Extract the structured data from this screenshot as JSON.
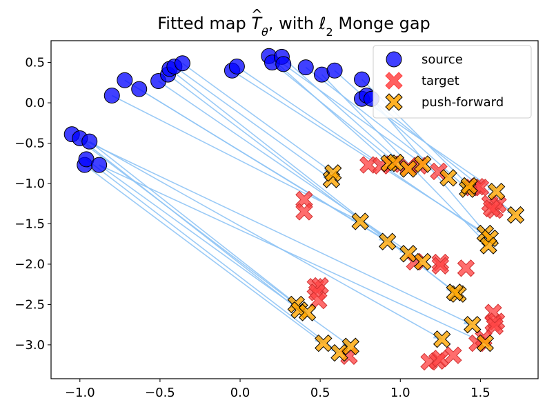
{
  "chart_data": {
    "type": "scatter",
    "title": "Fitted map T̂θ, with ℓ2 Monge gap",
    "title_parts": {
      "prefix": "Fitted map ",
      "symbol": "T",
      "hat": "^",
      "sub": "θ",
      "middle": ", with ",
      "ell": "ℓ",
      "ell_sub": "2",
      "suffix": " Monge gap"
    },
    "xlim": [
      -1.18,
      1.86
    ],
    "ylim": [
      -3.42,
      0.77
    ],
    "xticks": [
      -1.0,
      -0.5,
      0.0,
      0.5,
      1.0,
      1.5
    ],
    "xtick_labels": [
      "−1.0",
      "−0.5",
      "0.0",
      "0.5",
      "1.0",
      "1.5"
    ],
    "yticks": [
      0.5,
      0.0,
      -0.5,
      -1.0,
      -1.5,
      -2.0,
      -2.5,
      -3.0
    ],
    "ytick_labels": [
      "0.5",
      "0.0",
      "−0.5",
      "−1.0",
      "−1.5",
      "−2.0",
      "−2.5",
      "−3.0"
    ],
    "grid": false,
    "legend_position": "top-right",
    "colors": {
      "source": "#0000ff",
      "target": "#ff4444",
      "pushforward": "#ffa500",
      "arrow": "#8fc4f5"
    },
    "series": [
      {
        "name": "source",
        "marker": "circle",
        "points": [
          [
            -0.8,
            0.09
          ],
          [
            -0.72,
            0.28
          ],
          [
            -0.63,
            0.17
          ],
          [
            -0.51,
            0.27
          ],
          [
            -0.45,
            0.35
          ],
          [
            -0.44,
            0.42
          ],
          [
            -0.41,
            0.45
          ],
          [
            -0.36,
            0.49
          ],
          [
            -0.05,
            0.4
          ],
          [
            -0.02,
            0.45
          ],
          [
            0.18,
            0.58
          ],
          [
            0.2,
            0.5
          ],
          [
            0.26,
            0.57
          ],
          [
            0.27,
            0.48
          ],
          [
            0.41,
            0.44
          ],
          [
            0.51,
            0.35
          ],
          [
            0.59,
            0.4
          ],
          [
            0.76,
            0.29
          ],
          [
            0.76,
            0.05
          ],
          [
            0.79,
            0.09
          ],
          [
            0.82,
            0.05
          ],
          [
            -1.05,
            -0.39
          ],
          [
            -1.0,
            -0.44
          ],
          [
            -0.94,
            -0.48
          ],
          [
            -0.97,
            -0.77
          ],
          [
            -0.96,
            -0.7
          ],
          [
            -0.88,
            -0.77
          ]
        ]
      },
      {
        "name": "target",
        "marker": "x",
        "points": [
          [
            0.8,
            -0.77
          ],
          [
            0.88,
            -0.78
          ],
          [
            0.95,
            -0.76
          ],
          [
            1.05,
            -0.8
          ],
          [
            1.12,
            -0.78
          ],
          [
            1.24,
            -0.85
          ],
          [
            1.45,
            -1.05
          ],
          [
            1.48,
            -1.04
          ],
          [
            1.5,
            -1.05
          ],
          [
            1.56,
            -1.25
          ],
          [
            1.59,
            -1.33
          ],
          [
            1.61,
            -1.26
          ],
          [
            1.57,
            -1.31
          ],
          [
            0.4,
            -1.2
          ],
          [
            0.4,
            -1.35
          ],
          [
            1.09,
            -1.97
          ],
          [
            1.25,
            -1.98
          ],
          [
            1.25,
            -2.02
          ],
          [
            1.41,
            -2.05
          ],
          [
            0.47,
            -2.28
          ],
          [
            0.5,
            -2.27
          ],
          [
            0.48,
            -2.35
          ],
          [
            0.49,
            -2.45
          ],
          [
            1.58,
            -2.6
          ],
          [
            1.58,
            -2.73
          ],
          [
            1.6,
            -2.71
          ],
          [
            1.59,
            -2.77
          ],
          [
            1.48,
            -2.98
          ],
          [
            1.52,
            -2.92
          ],
          [
            0.68,
            -3.14
          ],
          [
            1.18,
            -3.21
          ],
          [
            1.23,
            -3.2
          ],
          [
            1.25,
            -3.17
          ],
          [
            1.33,
            -3.13
          ]
        ]
      },
      {
        "name": "push-forward",
        "marker": "x",
        "points": [
          [
            0.57,
            -0.95
          ],
          [
            0.58,
            -0.87
          ],
          [
            0.93,
            -0.75
          ],
          [
            0.97,
            -0.74
          ],
          [
            1.05,
            -0.82
          ],
          [
            1.14,
            -0.76
          ],
          [
            1.3,
            -0.93
          ],
          [
            1.42,
            -1.07
          ],
          [
            1.43,
            -1.03
          ],
          [
            1.6,
            -1.1
          ],
          [
            1.72,
            -1.39
          ],
          [
            1.53,
            -1.62
          ],
          [
            1.56,
            -1.68
          ],
          [
            1.55,
            -1.77
          ],
          [
            0.75,
            -1.47
          ],
          [
            0.92,
            -1.72
          ],
          [
            1.05,
            -1.87
          ],
          [
            1.14,
            -1.97
          ],
          [
            1.36,
            -2.37
          ],
          [
            1.34,
            -2.35
          ],
          [
            0.35,
            -2.5
          ],
          [
            0.37,
            -2.57
          ],
          [
            0.42,
            -2.6
          ],
          [
            0.52,
            -2.98
          ],
          [
            0.62,
            -3.1
          ],
          [
            0.69,
            -3.02
          ],
          [
            1.26,
            -2.93
          ],
          [
            1.45,
            -2.75
          ],
          [
            1.53,
            -2.98
          ]
        ]
      }
    ],
    "arrows": [
      [
        [
          -0.8,
          0.09
        ],
        [
          0.75,
          -1.47
        ]
      ],
      [
        [
          -0.72,
          0.28
        ],
        [
          0.92,
          -1.72
        ]
      ],
      [
        [
          -0.63,
          0.17
        ],
        [
          1.05,
          -1.87
        ]
      ],
      [
        [
          -0.51,
          0.27
        ],
        [
          1.14,
          -1.97
        ]
      ],
      [
        [
          -0.45,
          0.35
        ],
        [
          1.36,
          -2.37
        ]
      ],
      [
        [
          -0.44,
          0.42
        ],
        [
          1.34,
          -2.35
        ]
      ],
      [
        [
          -0.41,
          0.45
        ],
        [
          0.57,
          -0.95
        ]
      ],
      [
        [
          -0.36,
          0.49
        ],
        [
          0.58,
          -0.87
        ]
      ],
      [
        [
          -0.05,
          0.4
        ],
        [
          1.53,
          -1.62
        ]
      ],
      [
        [
          -0.02,
          0.45
        ],
        [
          1.56,
          -1.68
        ]
      ],
      [
        [
          0.18,
          0.58
        ],
        [
          0.93,
          -0.75
        ]
      ],
      [
        [
          0.2,
          0.5
        ],
        [
          0.97,
          -0.74
        ]
      ],
      [
        [
          0.26,
          0.57
        ],
        [
          1.05,
          -0.82
        ]
      ],
      [
        [
          0.27,
          0.48
        ],
        [
          1.14,
          -0.76
        ]
      ],
      [
        [
          0.41,
          0.44
        ],
        [
          1.3,
          -0.93
        ]
      ],
      [
        [
          0.51,
          0.35
        ],
        [
          1.55,
          -1.77
        ]
      ],
      [
        [
          0.59,
          0.4
        ],
        [
          1.42,
          -1.07
        ]
      ],
      [
        [
          0.76,
          0.29
        ],
        [
          1.43,
          -1.03
        ]
      ],
      [
        [
          0.76,
          0.05
        ],
        [
          1.6,
          -1.1
        ]
      ],
      [
        [
          0.79,
          0.09
        ],
        [
          1.72,
          -1.39
        ]
      ],
      [
        [
          0.82,
          0.05
        ],
        [
          1.56,
          -1.68
        ]
      ],
      [
        [
          -1.05,
          -0.39
        ],
        [
          0.35,
          -2.5
        ]
      ],
      [
        [
          -1.0,
          -0.44
        ],
        [
          0.37,
          -2.57
        ]
      ],
      [
        [
          -0.94,
          -0.48
        ],
        [
          0.42,
          -2.6
        ]
      ],
      [
        [
          -0.97,
          -0.77
        ],
        [
          0.52,
          -2.98
        ]
      ],
      [
        [
          -0.96,
          -0.7
        ],
        [
          0.62,
          -3.1
        ]
      ],
      [
        [
          -0.88,
          -0.77
        ],
        [
          0.69,
          -3.02
        ]
      ],
      [
        [
          -0.94,
          -0.48
        ],
        [
          1.26,
          -2.93
        ]
      ],
      [
        [
          -1.0,
          -0.44
        ],
        [
          1.45,
          -2.75
        ]
      ],
      [
        [
          -0.88,
          -0.77
        ],
        [
          1.53,
          -2.98
        ]
      ]
    ]
  }
}
